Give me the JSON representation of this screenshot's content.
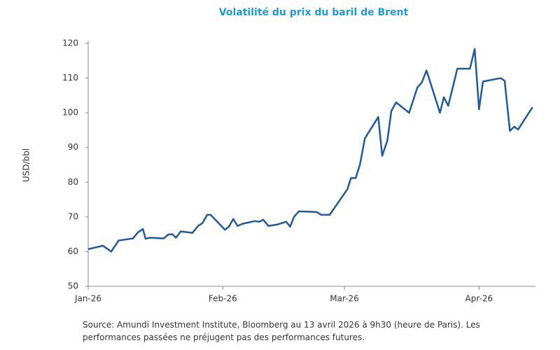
{
  "chart_data": {
    "type": "line",
    "title": "Volatilité du prix du baril de Brent",
    "y_label": "USD/bbl",
    "source": "Source: Amundi Investment Institute, Bloomberg au 13 avril 2026 à 9h30 (heure de Paris). Les performances passées ne préjugent pas des performances futures.",
    "x": [
      0,
      3.4,
      5.3,
      7,
      10.3,
      11.5,
      12.6,
      13.2,
      14.2,
      17.4,
      18.4,
      19.4,
      20.2,
      21.3,
      24,
      25.3,
      26.3,
      27.4,
      28.2,
      31.5,
      32.4,
      33.4,
      34.4,
      35.5,
      38.4,
      39.4,
      40.3,
      41.5,
      43.5,
      45.6,
      46.5,
      47.4,
      48.5,
      52.6,
      53.7,
      55.6,
      59.7,
      60.5,
      61.6,
      62.6,
      63.7,
      66.8,
      67.7,
      68.9,
      69.8,
      70.9,
      73.9,
      75.8,
      76.8,
      77.9,
      81,
      81.9,
      82.9,
      85,
      87.9,
      89,
      90,
      90.9,
      95,
      95.9,
      97.1,
      98.1,
      99,
      102.3
    ],
    "series": [
      {
        "name": "Brent",
        "color": "#1f5a9e",
        "values": [
          60.7,
          61.7,
          60,
          63.2,
          63.8,
          65.6,
          66.5,
          63.7,
          64,
          63.8,
          64.9,
          65,
          64,
          65.8,
          65.4,
          67.4,
          68.2,
          70.6,
          70.6,
          66.3,
          67.2,
          69.4,
          67.4,
          68,
          68.8,
          68.6,
          69.2,
          67.4,
          67.8,
          68.6,
          67.2,
          70,
          71.6,
          71.4,
          70.6,
          70.6,
          78,
          81.2,
          81.2,
          85.2,
          92.6,
          98.8,
          87.6,
          92.1,
          100.5,
          103,
          100,
          107.3,
          108.7,
          112.2,
          100,
          104.5,
          102,
          112.7,
          112.7,
          118.4,
          101,
          109,
          110,
          109.2,
          94.8,
          96,
          95.2,
          101.6
        ]
      }
    ],
    "xlim": [
      0,
      103
    ],
    "xticks": [
      {
        "value": 0,
        "label": "Jan-26"
      },
      {
        "value": 31,
        "label": "Feb-26"
      },
      {
        "value": 59,
        "label": "Mar-26"
      },
      {
        "value": 90,
        "label": "Apr-26"
      }
    ],
    "ylim": [
      50,
      120
    ],
    "yticks": [
      50,
      60,
      70,
      80,
      90,
      100,
      110,
      120
    ],
    "grid": false
  }
}
